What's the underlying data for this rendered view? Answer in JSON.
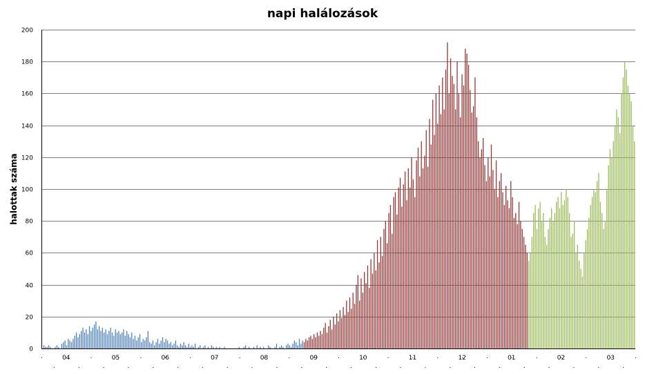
{
  "chart_data": {
    "type": "bar",
    "title": "napi halálozások",
    "xlabel": "",
    "ylabel": "halottak száma",
    "ylim": [
      0,
      200
    ],
    "yticks": [
      0,
      20,
      40,
      60,
      80,
      100,
      120,
      140,
      160,
      180,
      200
    ],
    "grid": true,
    "legend": "none",
    "x_tick_labels": [
      "04",
      "05",
      "06",
      "07",
      "08",
      "09",
      "10",
      "11",
      "12",
      "01",
      "02",
      "03"
    ],
    "colors": {
      "series": [
        "#4f81bd",
        "#953735",
        "#9bbb59"
      ],
      "grid": "#7f7f7f",
      "axis": "#000000"
    },
    "series": [
      {
        "values": [
          0,
          2,
          1,
          1,
          2,
          1,
          0,
          0,
          1,
          2,
          1,
          0,
          3,
          4,
          5,
          2,
          6,
          5,
          4,
          6,
          8,
          10,
          7,
          9,
          11,
          13,
          10,
          12,
          9,
          14,
          11,
          13,
          15,
          17,
          12,
          14,
          11,
          13,
          10,
          12,
          9,
          11,
          13,
          10,
          8,
          12,
          10,
          11,
          9,
          10,
          12,
          8,
          11,
          9,
          7,
          10,
          6,
          8,
          5,
          7,
          9,
          4,
          6,
          5,
          7,
          11,
          4,
          3,
          5,
          2,
          4,
          6,
          3,
          5,
          7,
          4,
          6,
          5,
          3,
          4,
          2,
          3,
          5,
          2,
          1,
          3,
          2,
          4,
          2,
          1,
          3,
          1,
          2,
          1,
          3,
          0,
          1,
          2,
          0,
          1,
          2,
          0,
          1,
          0,
          2,
          1,
          0,
          1,
          0,
          1,
          0,
          0,
          1,
          0,
          0,
          0,
          0,
          0,
          0,
          0,
          0,
          1,
          0,
          0,
          1,
          2,
          0,
          1,
          0,
          0,
          1,
          0,
          2,
          0,
          1,
          0,
          1,
          0,
          0,
          2,
          1,
          0,
          0,
          1,
          3,
          0,
          1,
          2,
          1,
          0,
          2,
          3,
          2,
          1,
          3,
          5,
          4,
          2,
          6,
          3,
          5
        ]
      },
      {
        "values": [
          4,
          6,
          5,
          7,
          8,
          6,
          9,
          7,
          10,
          8,
          11,
          9,
          13,
          16,
          10,
          14,
          18,
          12,
          20,
          15,
          22,
          17,
          24,
          19,
          26,
          21,
          30,
          23,
          32,
          25,
          35,
          28,
          40,
          46,
          30,
          44,
          35,
          48,
          41,
          52,
          38,
          56,
          47,
          60,
          49,
          68,
          54,
          70,
          58,
          75,
          80,
          66,
          85,
          90,
          72,
          95,
          98,
          84,
          101,
          107,
          89,
          103,
          111,
          93,
          113,
          101,
          120,
          106,
          95,
          118,
          126,
          108,
          130,
          113,
          121,
          137,
          114,
          144,
          128,
          156,
          134,
          160,
          141,
          165,
          147,
          170,
          150,
          175,
          192,
          160,
          182,
          171,
          166,
          150,
          180,
          160,
          145,
          172,
          165,
          188,
          185,
          178,
          162,
          148,
          152,
          170,
          145,
          130,
          120,
          125,
          132,
          115,
          105,
          120,
          108,
          128,
          112,
          100,
          118,
          95,
          105,
          110,
          98,
          90,
          102,
          93,
          88,
          105,
          95,
          82,
          85,
          78,
          92,
          80,
          75,
          70,
          65,
          60
        ]
      },
      {
        "values": [
          55,
          60,
          70,
          85,
          90,
          75,
          88,
          92,
          80,
          85,
          70,
          65,
          75,
          82,
          88,
          80,
          85,
          92,
          95,
          88,
          98,
          90,
          93,
          100,
          95,
          85,
          70,
          72,
          80,
          60,
          65,
          55,
          50,
          45,
          60,
          68,
          75,
          82,
          90,
          95,
          100,
          98,
          105,
          110,
          92,
          85,
          75,
          80,
          100,
          115,
          125,
          120,
          130,
          140,
          150,
          145,
          135,
          160,
          170,
          180,
          175,
          165,
          160,
          155,
          140,
          130
        ]
      }
    ]
  }
}
